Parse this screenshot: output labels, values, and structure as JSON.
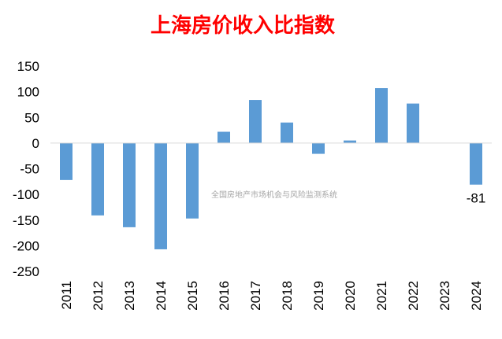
{
  "chart_data": {
    "type": "bar",
    "title": "上海房价收入比指数",
    "categories": [
      "2011",
      "2012",
      "2013",
      "2014",
      "2015",
      "2016",
      "2017",
      "2018",
      "2019",
      "2020",
      "2021",
      "2022",
      "2023",
      "2024"
    ],
    "values": [
      -72,
      -141,
      -164,
      -207,
      -147,
      22,
      84,
      40,
      -21,
      5,
      107,
      77,
      null,
      -81
    ],
    "data_labels": [
      null,
      null,
      null,
      null,
      null,
      null,
      null,
      null,
      null,
      null,
      null,
      null,
      null,
      "-81"
    ],
    "y_ticks": [
      "150",
      "100",
      "50",
      "0",
      "-50",
      "-100",
      "-150",
      "-200",
      "-250"
    ],
    "ylim": [
      -250,
      150
    ],
    "xlabel": "",
    "ylabel": "",
    "grid": false,
    "legend": "none",
    "bar_color": "#5b9bd5",
    "axis_color": "#d9d9d9"
  },
  "watermark": "全国房地产市场机会与风险监测系统",
  "colors": {
    "title": "#ff0000",
    "watermark": "#a6a6a6"
  }
}
